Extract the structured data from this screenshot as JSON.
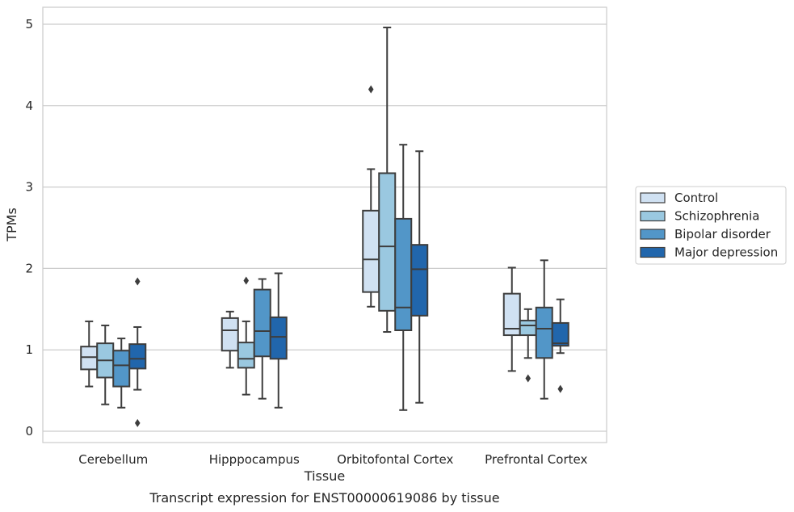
{
  "chart_data": {
    "type": "boxplot",
    "caption": "Transcript expression for ENST00000619086 by tissue",
    "xlabel": "Tissue",
    "ylabel": "TPMs",
    "ylim": [
      -0.12,
      5.2
    ],
    "yticks": [
      0,
      1,
      2,
      3,
      4,
      5
    ],
    "grid": "horizontal",
    "legend_position": "right",
    "categories": [
      "Cerebellum",
      "Hipppocampus",
      "Orbitofontal Cortex",
      "Prefrontal Cortex"
    ],
    "series": [
      {
        "name": "Control",
        "color": "#d0e1f2",
        "boxes": [
          {
            "whislo": 0.55,
            "q1": 0.76,
            "med": 0.91,
            "q3": 1.04,
            "whishi": 1.35,
            "fliers": []
          },
          {
            "whislo": 0.78,
            "q1": 0.99,
            "med": 1.24,
            "q3": 1.39,
            "whishi": 1.47,
            "fliers": []
          },
          {
            "whislo": 1.53,
            "q1": 1.71,
            "med": 2.11,
            "q3": 2.71,
            "whishi": 3.22,
            "fliers": [
              4.2
            ]
          },
          {
            "whislo": 0.74,
            "q1": 1.18,
            "med": 1.26,
            "q3": 1.69,
            "whishi": 2.01,
            "fliers": []
          }
        ]
      },
      {
        "name": "Schizophrenia",
        "color": "#9ac8e0",
        "boxes": [
          {
            "whislo": 0.33,
            "q1": 0.66,
            "med": 0.87,
            "q3": 1.08,
            "whishi": 1.3,
            "fliers": []
          },
          {
            "whislo": 0.45,
            "q1": 0.78,
            "med": 0.89,
            "q3": 1.09,
            "whishi": 1.35,
            "fliers": [
              1.85
            ]
          },
          {
            "whislo": 1.22,
            "q1": 1.48,
            "med": 2.27,
            "q3": 3.17,
            "whishi": 4.96,
            "fliers": []
          },
          {
            "whislo": 0.9,
            "q1": 1.18,
            "med": 1.3,
            "q3": 1.36,
            "whishi": 1.5,
            "fliers": [
              0.65
            ]
          }
        ]
      },
      {
        "name": "Bipolar disorder",
        "color": "#5296c8",
        "boxes": [
          {
            "whislo": 0.29,
            "q1": 0.55,
            "med": 0.81,
            "q3": 0.99,
            "whishi": 1.14,
            "fliers": []
          },
          {
            "whislo": 0.4,
            "q1": 0.92,
            "med": 1.23,
            "q3": 1.74,
            "whishi": 1.87,
            "fliers": []
          },
          {
            "whislo": 0.26,
            "q1": 1.24,
            "med": 1.52,
            "q3": 2.61,
            "whishi": 3.52,
            "fliers": []
          },
          {
            "whislo": 0.4,
            "q1": 0.9,
            "med": 1.26,
            "q3": 1.52,
            "whishi": 2.1,
            "fliers": []
          }
        ]
      },
      {
        "name": "Major depression",
        "color": "#2166ac",
        "boxes": [
          {
            "whislo": 0.51,
            "q1": 0.77,
            "med": 0.89,
            "q3": 1.07,
            "whishi": 1.28,
            "fliers": [
              1.84,
              0.1
            ]
          },
          {
            "whislo": 0.29,
            "q1": 0.89,
            "med": 1.16,
            "q3": 1.4,
            "whishi": 1.94,
            "fliers": []
          },
          {
            "whislo": 0.35,
            "q1": 1.42,
            "med": 1.99,
            "q3": 2.29,
            "whishi": 3.44,
            "fliers": []
          },
          {
            "whislo": 0.96,
            "q1": 1.05,
            "med": 1.08,
            "q3": 1.33,
            "whishi": 1.62,
            "fliers": [
              0.52
            ]
          }
        ]
      }
    ]
  }
}
